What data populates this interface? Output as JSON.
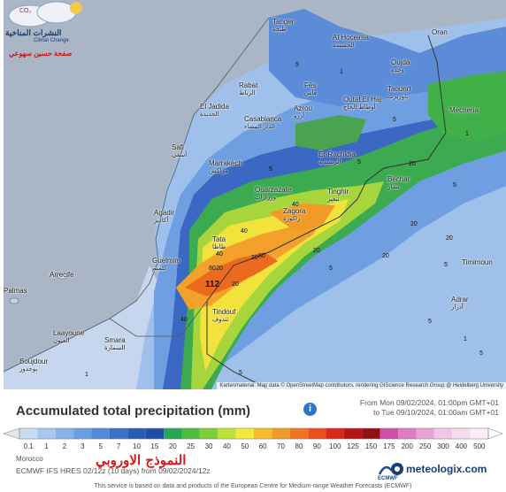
{
  "map": {
    "cities": [
      {
        "key": "tanger",
        "name": "Tanger",
        "arabic": "طنجة"
      },
      {
        "key": "alhoceima",
        "name": "Al Hoceima",
        "arabic": "الحسيمة"
      },
      {
        "key": "oran",
        "name": "Oran",
        "arabic": ""
      },
      {
        "key": "oujda",
        "name": "Oujda",
        "arabic": "وجدة"
      },
      {
        "key": "rabat",
        "name": "Rabat",
        "arabic": "الرباط"
      },
      {
        "key": "fes",
        "name": "Fès",
        "arabic": "فاس"
      },
      {
        "key": "taourirt",
        "name": "Taourirt",
        "arabic": "تاوريرت"
      },
      {
        "key": "eljadida",
        "name": "El Jadida",
        "arabic": "الجديدة"
      },
      {
        "key": "azrou",
        "name": "Azrou",
        "arabic": "أزرو"
      },
      {
        "key": "outatelhaj",
        "name": "Outat El Haj",
        "arabic": "أوطاط الحاج"
      },
      {
        "key": "casablanca",
        "name": "Casablanca",
        "arabic": "الدار البيضاء"
      },
      {
        "key": "mecheria",
        "name": "Mecheria",
        "arabic": ""
      },
      {
        "key": "safi",
        "name": "Safi",
        "arabic": "آسفي"
      },
      {
        "key": "marrakech",
        "name": "Marrakech",
        "arabic": "مراكش"
      },
      {
        "key": "errachidia",
        "name": "Er-Rachidia",
        "arabic": "الرشيدية"
      },
      {
        "key": "bechar",
        "name": "Béchar",
        "arabic": "بشار"
      },
      {
        "key": "ouarzazate",
        "name": "Ouarzazate",
        "arabic": "ورزازات"
      },
      {
        "key": "tinghir",
        "name": "Tinghir",
        "arabic": "تنغير"
      },
      {
        "key": "agadir",
        "name": "Agadir",
        "arabic": "أكادير"
      },
      {
        "key": "zagora",
        "name": "Zagora",
        "arabic": "زاكورة"
      },
      {
        "key": "tata",
        "name": "Tata",
        "arabic": "طاطا"
      },
      {
        "key": "guelmim",
        "name": "Guelmim",
        "arabic": "كلميم"
      },
      {
        "key": "timimoun",
        "name": "Timimoun",
        "arabic": ""
      },
      {
        "key": "arrecife",
        "name": "Arrecife",
        "arabic": ""
      },
      {
        "key": "tindouf",
        "name": "Tindouf",
        "arabic": "تندوف"
      },
      {
        "key": "palmas",
        "name": "Palmas",
        "arabic": ""
      },
      {
        "key": "adrar",
        "name": "Adrar",
        "arabic": "أدرار"
      },
      {
        "key": "smara",
        "name": "Smara",
        "arabic": "السمارة"
      },
      {
        "key": "laayoune",
        "name": "Laayoune",
        "arabic": "العيون"
      },
      {
        "key": "boujdour",
        "name": "Boujdour",
        "arabic": "بوجدور"
      }
    ],
    "grid_values": [
      {
        "key": "v1",
        "value": "5"
      },
      {
        "key": "v2",
        "value": "1"
      },
      {
        "key": "v3",
        "value": "5"
      },
      {
        "key": "v4",
        "value": "1"
      },
      {
        "key": "v5",
        "value": "5"
      },
      {
        "key": "v6",
        "value": "20"
      },
      {
        "key": "v7",
        "value": "5"
      },
      {
        "key": "v8",
        "value": "20"
      },
      {
        "key": "v9",
        "value": "20"
      },
      {
        "key": "v10",
        "value": "5"
      },
      {
        "key": "v11",
        "value": "20"
      },
      {
        "key": "v12",
        "value": "20"
      },
      {
        "key": "v13",
        "value": "40"
      },
      {
        "key": "v14",
        "value": "40"
      },
      {
        "key": "v15",
        "value": "80"
      },
      {
        "key": "v16",
        "value": "40"
      },
      {
        "key": "v17",
        "value": "80"
      },
      {
        "key": "v18",
        "value": "20"
      },
      {
        "key": "v19",
        "value": "20"
      },
      {
        "key": "v20",
        "value": "5"
      },
      {
        "key": "v21",
        "value": "5"
      },
      {
        "key": "v22",
        "value": "40"
      },
      {
        "key": "v23",
        "value": "1"
      },
      {
        "key": "v24",
        "value": "5"
      },
      {
        "key": "v25",
        "value": "20"
      },
      {
        "key": "v26",
        "value": "5"
      },
      {
        "key": "v27",
        "value": "1"
      },
      {
        "key": "v28",
        "value": "5"
      }
    ],
    "max_label": "112",
    "attribution": "Kartenmaterial: Map data © OpenStreetMap contributors, rendering GIScience Research Group @ Heidelberg University"
  },
  "watermark": {
    "line1": "النشرات المناخية",
    "line2": "Climat Change",
    "line3": "صفحة حسين سهوعي"
  },
  "header": {
    "title": "Accumulated total precipitation (mm)",
    "info_icon": "i",
    "period_from": "From Mon 09/02/2024, 01:00pm GMT+01",
    "period_to": "to Tue 09/10/2024, 01:00am GMT+01"
  },
  "scale": {
    "ticks": [
      "0.1",
      "1",
      "2",
      "3",
      "5",
      "7",
      "10",
      "15",
      "20",
      "25",
      "30",
      "40",
      "50",
      "60",
      "70",
      "80",
      "90",
      "100",
      "125",
      "150",
      "175",
      "200",
      "250",
      "300",
      "400",
      "500"
    ],
    "colors": [
      "#c8dcf0",
      "#a6c8ee",
      "#86b2e8",
      "#6a9ee0",
      "#5489d6",
      "#3c6fc8",
      "#2b5cb5",
      "#1f4fa3",
      "#28a455",
      "#4ebd3d",
      "#7ecf36",
      "#bce03a",
      "#f2e93b",
      "#f4bd2c",
      "#f19a25",
      "#ee7420",
      "#e9511c",
      "#d8281a",
      "#b41416",
      "#8e1014",
      "#ce4fa5",
      "#de7cc3",
      "#e9a2d5",
      "#f2c6e6",
      "#f6dbef",
      "#fbeef8"
    ],
    "arrow_left_color": "#e6e6e6",
    "arrow_right_color": "#ffffff"
  },
  "footer": {
    "region": "Morocco",
    "model": "ECMWF IFS HRES 02/12z (10 days) from 09/02/2024/12z",
    "arabic_model": "النموذج الاوروبي",
    "ecmwf_label": "ECMWF",
    "brand": "meteologix.com",
    "disclaimer": "This service is based on data and products of the European Centre for Medium-range Weather Forecasts (ECMWF)"
  }
}
